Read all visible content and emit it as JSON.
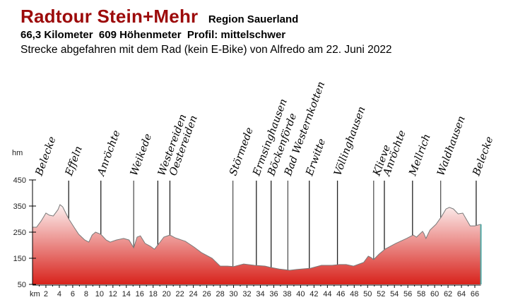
{
  "header": {
    "title": "Radtour Stein+Mehr",
    "region": "Region Sauerland",
    "stats": "66,3 Kilometer  609 Höhenmeter  Profil: mittelschwer",
    "description": "Strecke abgefahren mit dem Rad (kein E-Bike) von Alfredo am 22. Juni 2022"
  },
  "colors": {
    "title": "#9c0a0a",
    "fill_top": "#fdf4f4",
    "fill_bottom": "#d8231c",
    "outline": "#7a7a7a",
    "end_line": "#4fa9a5"
  },
  "chart_data": {
    "type": "area",
    "title": "Radtour Stein+Mehr – Höhenprofil",
    "xlabel": "km",
    "ylabel": "hm",
    "xlim": [
      0,
      66.9
    ],
    "ylim": [
      50,
      450
    ],
    "x_ticks": [
      2,
      4,
      6,
      8,
      10,
      12,
      14,
      16,
      18,
      20,
      22,
      24,
      26,
      28,
      30,
      32,
      34,
      36,
      38,
      40,
      42,
      44,
      46,
      48,
      50,
      52,
      54,
      56,
      58,
      60,
      62,
      64,
      66
    ],
    "y_ticks": [
      50,
      150,
      250,
      350,
      450
    ],
    "grid": false,
    "x": [
      0,
      0.6,
      1.3,
      2.0,
      2.5,
      3.1,
      3.8,
      4.1,
      4.5,
      5.4,
      6.2,
      6.9,
      7.8,
      8.4,
      8.9,
      9.4,
      10.2,
      11.0,
      11.6,
      12.5,
      13.6,
      14.4,
      15.1,
      15.6,
      16.1,
      16.8,
      17.6,
      18.2,
      18.8,
      19.6,
      20.5,
      21.3,
      22.8,
      24.1,
      25.2,
      26.8,
      28.0,
      29.1,
      30.0,
      31.5,
      33.1,
      34.7,
      35.5,
      36.8,
      38.4,
      39.4,
      41.5,
      43.1,
      44.7,
      45.8,
      46.8,
      47.9,
      49.4,
      50.1,
      50.5,
      50.9,
      51.7,
      52.6,
      54.2,
      55.8,
      56.8,
      57.3,
      58.2,
      58.4,
      58.7,
      59.3,
      60.2,
      61.0,
      61.7,
      62.2,
      62.8,
      63.5,
      64.2,
      65.3,
      66.0,
      66.9
    ],
    "elevation": [
      269,
      269,
      293,
      323,
      315,
      312,
      336,
      355,
      347,
      301,
      269,
      242,
      220,
      212,
      239,
      250,
      242,
      220,
      212,
      220,
      226,
      220,
      190,
      231,
      236,
      207,
      196,
      185,
      204,
      231,
      239,
      228,
      215,
      193,
      172,
      150,
      120,
      120,
      118,
      128,
      123,
      120,
      115,
      109,
      104,
      107,
      112,
      123,
      123,
      126,
      126,
      120,
      134,
      158,
      153,
      145,
      166,
      185,
      207,
      226,
      239,
      231,
      253,
      245,
      226,
      258,
      280,
      309,
      339,
      345,
      339,
      320,
      323,
      274,
      274,
      280
    ],
    "waypoints": [
      {
        "name": "Belecke",
        "km": 0.0
      },
      {
        "name": "Effeln",
        "km": 5.4
      },
      {
        "name": "Anröchte",
        "km": 10.2
      },
      {
        "name": "Weikede",
        "km": 15.1
      },
      {
        "name": "Westereiden",
        "km": 18.7
      },
      {
        "name": "Oestereiden",
        "km": 20.5
      },
      {
        "name": "Störmede",
        "km": 29.9
      },
      {
        "name": "Ermsinghausen",
        "km": 33.4
      },
      {
        "name": "Böckenförde",
        "km": 35.6
      },
      {
        "name": "Bad Westernkotten",
        "km": 38.1
      },
      {
        "name": "Erwitte",
        "km": 41.3
      },
      {
        "name": "Völlinghausen",
        "km": 45.5
      },
      {
        "name": "Klieve",
        "km": 50.9
      },
      {
        "name": "Anröchte",
        "km": 52.5
      },
      {
        "name": "Mellrich",
        "km": 56.7
      },
      {
        "name": "Waldhausen",
        "km": 60.9
      },
      {
        "name": "Belecke",
        "km": 66.2
      }
    ]
  }
}
